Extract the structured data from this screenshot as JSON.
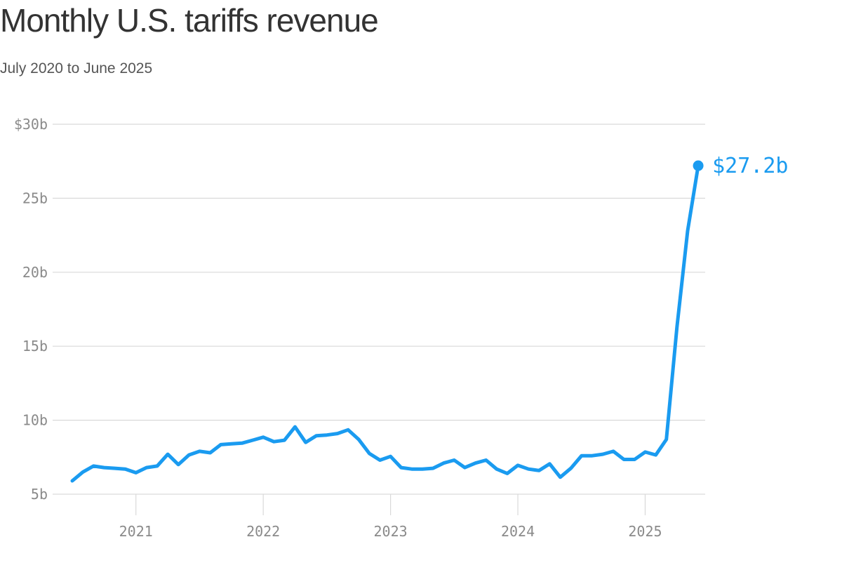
{
  "header": {
    "title": "Monthly U.S. tariffs revenue",
    "subtitle": "July 2020 to June 2025"
  },
  "colors": {
    "line": "#1a9bf0",
    "grid": "#d9d9d9",
    "tick_text": "#8a8a8a"
  },
  "chart_data": {
    "type": "line",
    "title": "Monthly U.S. tariffs revenue",
    "subtitle": "July 2020 to June 2025",
    "xlabel": "",
    "ylabel": "",
    "y_unit": "billion USD",
    "ylim": [
      5,
      30
    ],
    "y_ticks": [
      {
        "value": 30,
        "label": "$30b"
      },
      {
        "value": 25,
        "label": "25b"
      },
      {
        "value": 20,
        "label": "20b"
      },
      {
        "value": 15,
        "label": "15b"
      },
      {
        "value": 10,
        "label": "10b"
      },
      {
        "value": 5,
        "label": "5b"
      }
    ],
    "x_ticks": [
      {
        "index": 6,
        "label": "2021"
      },
      {
        "index": 18,
        "label": "2022"
      },
      {
        "index": 30,
        "label": "2023"
      },
      {
        "index": 42,
        "label": "2024"
      },
      {
        "index": 54,
        "label": "2025"
      }
    ],
    "grid": true,
    "series": [
      {
        "name": "Monthly U.S. tariffs revenue",
        "x": [
          "2020-07",
          "2020-08",
          "2020-09",
          "2020-10",
          "2020-11",
          "2020-12",
          "2021-01",
          "2021-02",
          "2021-03",
          "2021-04",
          "2021-05",
          "2021-06",
          "2021-07",
          "2021-08",
          "2021-09",
          "2021-10",
          "2021-11",
          "2021-12",
          "2022-01",
          "2022-02",
          "2022-03",
          "2022-04",
          "2022-05",
          "2022-06",
          "2022-07",
          "2022-08",
          "2022-09",
          "2022-10",
          "2022-11",
          "2022-12",
          "2023-01",
          "2023-02",
          "2023-03",
          "2023-04",
          "2023-05",
          "2023-06",
          "2023-07",
          "2023-08",
          "2023-09",
          "2023-10",
          "2023-11",
          "2023-12",
          "2024-01",
          "2024-02",
          "2024-03",
          "2024-04",
          "2024-05",
          "2024-06",
          "2024-07",
          "2024-08",
          "2024-09",
          "2024-10",
          "2024-11",
          "2024-12",
          "2025-01",
          "2025-02",
          "2025-03",
          "2025-04",
          "2025-05",
          "2025-06"
        ],
        "values": [
          5.9,
          6.5,
          6.9,
          6.8,
          6.75,
          6.7,
          6.45,
          6.8,
          6.9,
          7.7,
          7.0,
          7.65,
          7.9,
          7.8,
          8.35,
          8.4,
          8.45,
          8.65,
          8.85,
          8.55,
          8.65,
          9.55,
          8.5,
          8.95,
          9.0,
          9.1,
          9.35,
          8.7,
          7.75,
          7.3,
          7.55,
          6.8,
          6.7,
          6.7,
          6.75,
          7.1,
          7.3,
          6.8,
          7.1,
          7.3,
          6.7,
          6.4,
          6.95,
          6.7,
          6.6,
          7.05,
          6.15,
          6.75,
          7.6,
          7.6,
          7.7,
          7.9,
          7.35,
          7.35,
          7.85,
          7.65,
          8.7,
          16.3,
          22.8,
          27.2
        ]
      }
    ],
    "end_label": "$27.2b"
  }
}
